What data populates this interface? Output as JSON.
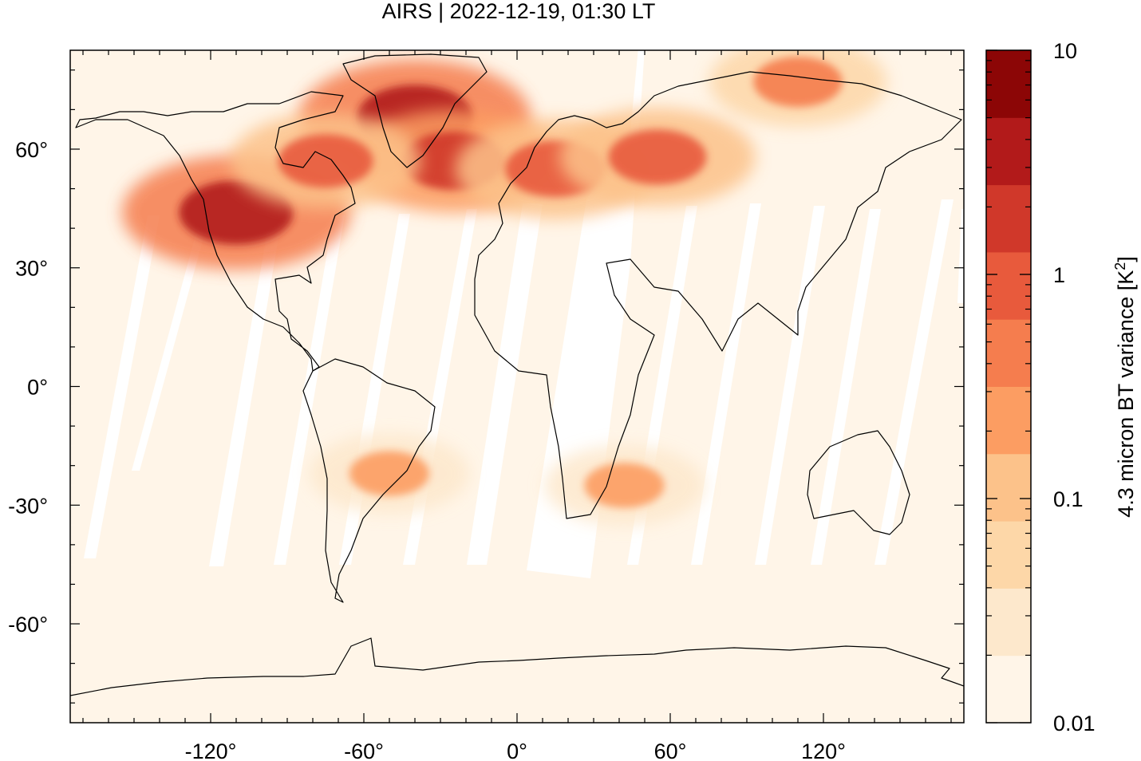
{
  "chart_data": {
    "type": "heatmap",
    "title": "AIRS | 2022-12-19, 01:30 LT",
    "xlim": [
      -175,
      175
    ],
    "ylim": [
      -85,
      85
    ],
    "x_ticks": [
      {
        "value": -120,
        "label": "-120°"
      },
      {
        "value": -60,
        "label": "-60°"
      },
      {
        "value": 0,
        "label": "0°"
      },
      {
        "value": 60,
        "label": "60°"
      },
      {
        "value": 120,
        "label": "120°"
      }
    ],
    "y_ticks": [
      {
        "value": 60,
        "label": "60°"
      },
      {
        "value": 30,
        "label": "30°"
      },
      {
        "value": 0,
        "label": "0°"
      },
      {
        "value": -30,
        "label": "-30°"
      },
      {
        "value": -60,
        "label": "-60°"
      }
    ],
    "colorbar": {
      "label": "4.3 micron BT variance [K",
      "label_sup": "2",
      "label_end": "]",
      "scale": "log",
      "range": [
        0.01,
        10
      ],
      "tick_labels": [
        {
          "value": 10,
          "label": "10"
        },
        {
          "value": 1,
          "label": "1"
        },
        {
          "value": 0.1,
          "label": "0.1"
        },
        {
          "value": 0.01,
          "label": "0.01"
        }
      ],
      "colors": [
        "#fff5e8",
        "#fde8cc",
        "#fdd7a8",
        "#fcc28a",
        "#fc9d62",
        "#f57d4e",
        "#e85a3c",
        "#d0382a",
        "#b21a1a",
        "#8c0606"
      ]
    },
    "background_color": "#fff5e8",
    "hotspots": [
      {
        "lon": -110,
        "lat": 44,
        "value": 3.5
      },
      {
        "lon": -40,
        "lat": 68,
        "value": 4.0
      },
      {
        "lon": -25,
        "lat": 57,
        "value": 1.5
      },
      {
        "lon": 15,
        "lat": 55,
        "value": 1.2
      },
      {
        "lon": 55,
        "lat": 58,
        "value": 1.0
      },
      {
        "lon": -75,
        "lat": 57,
        "value": 0.8
      },
      {
        "lon": 110,
        "lat": 77,
        "value": 0.5
      },
      {
        "lon": -50,
        "lat": -22,
        "value": 0.25
      },
      {
        "lon": 42,
        "lat": -25,
        "value": 0.25
      }
    ],
    "grid": false,
    "legend": "right colorbar"
  }
}
